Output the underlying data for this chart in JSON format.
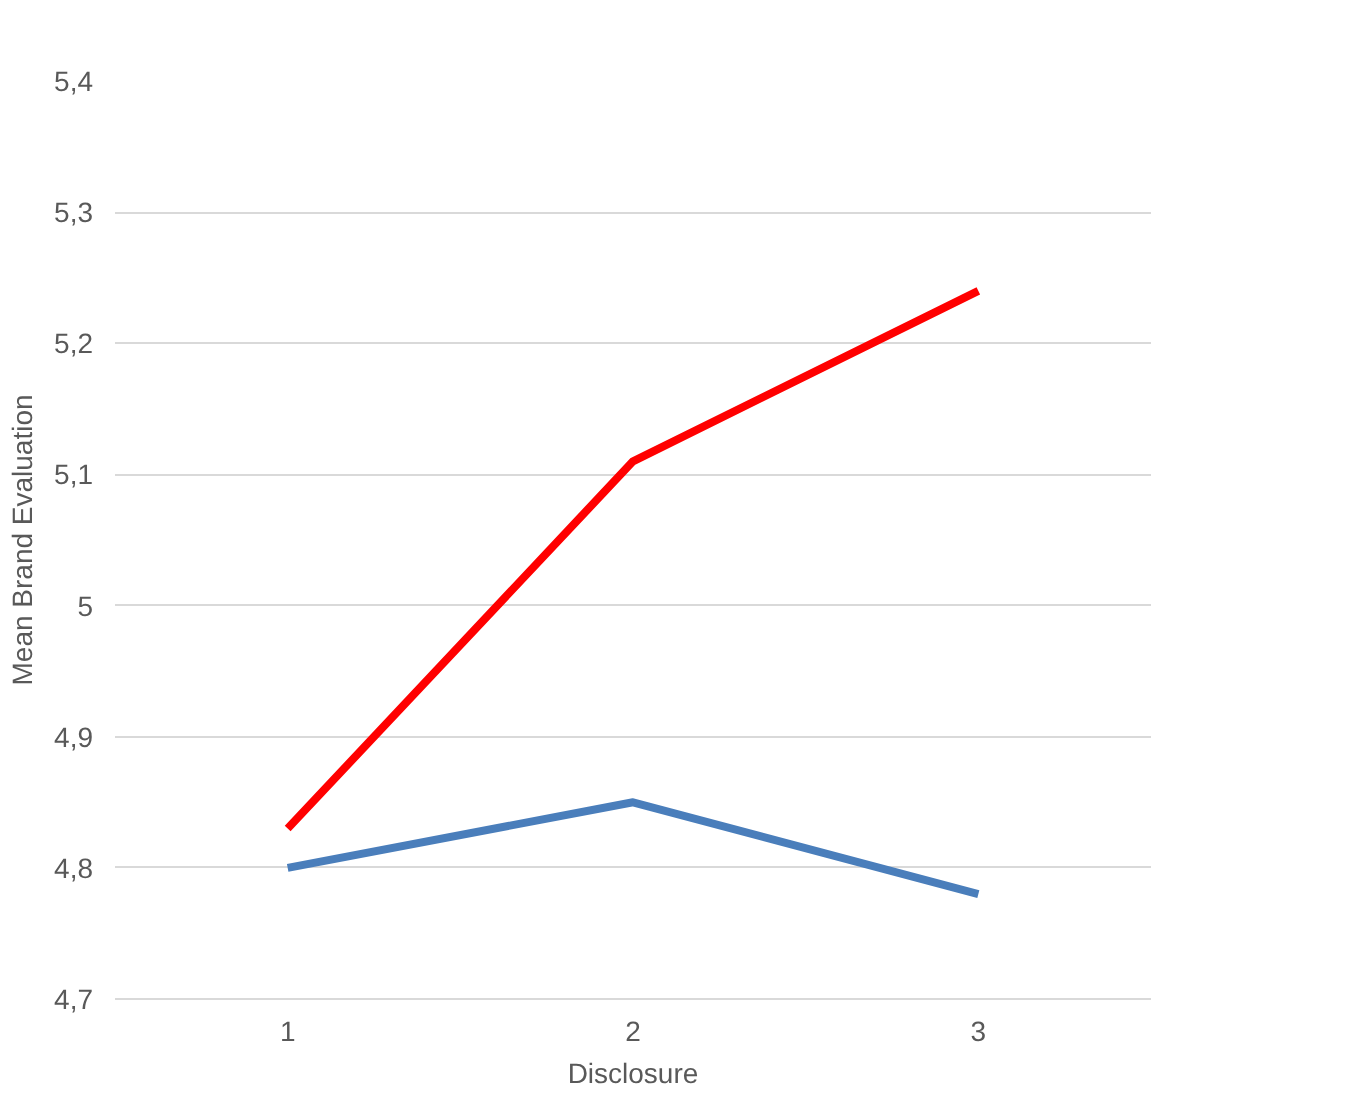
{
  "chart_data": {
    "type": "line",
    "xlabel": "Disclosure",
    "ylabel": "Mean Brand Evaluation",
    "categories": [
      "1",
      "2",
      "3"
    ],
    "series": [
      {
        "color": "#ff0000",
        "values": [
          4.83,
          5.11,
          5.24
        ]
      },
      {
        "color": "#4a7ebb",
        "values": [
          4.8,
          4.85,
          4.78
        ]
      }
    ],
    "ylim": [
      4.7,
      5.4
    ],
    "yticks": [
      {
        "value": 4.7,
        "label": "4,7"
      },
      {
        "value": 4.8,
        "label": "4,8"
      },
      {
        "value": 4.9,
        "label": "4,9"
      },
      5,
      {
        "value": 5.1,
        "label": "5,1"
      },
      {
        "value": 5.2,
        "label": "5,2"
      },
      {
        "value": 5.3,
        "label": "5,3"
      },
      {
        "value": 5.4,
        "label": "5,4"
      }
    ],
    "grid": "y",
    "marker": "none",
    "line_style": "solid"
  }
}
